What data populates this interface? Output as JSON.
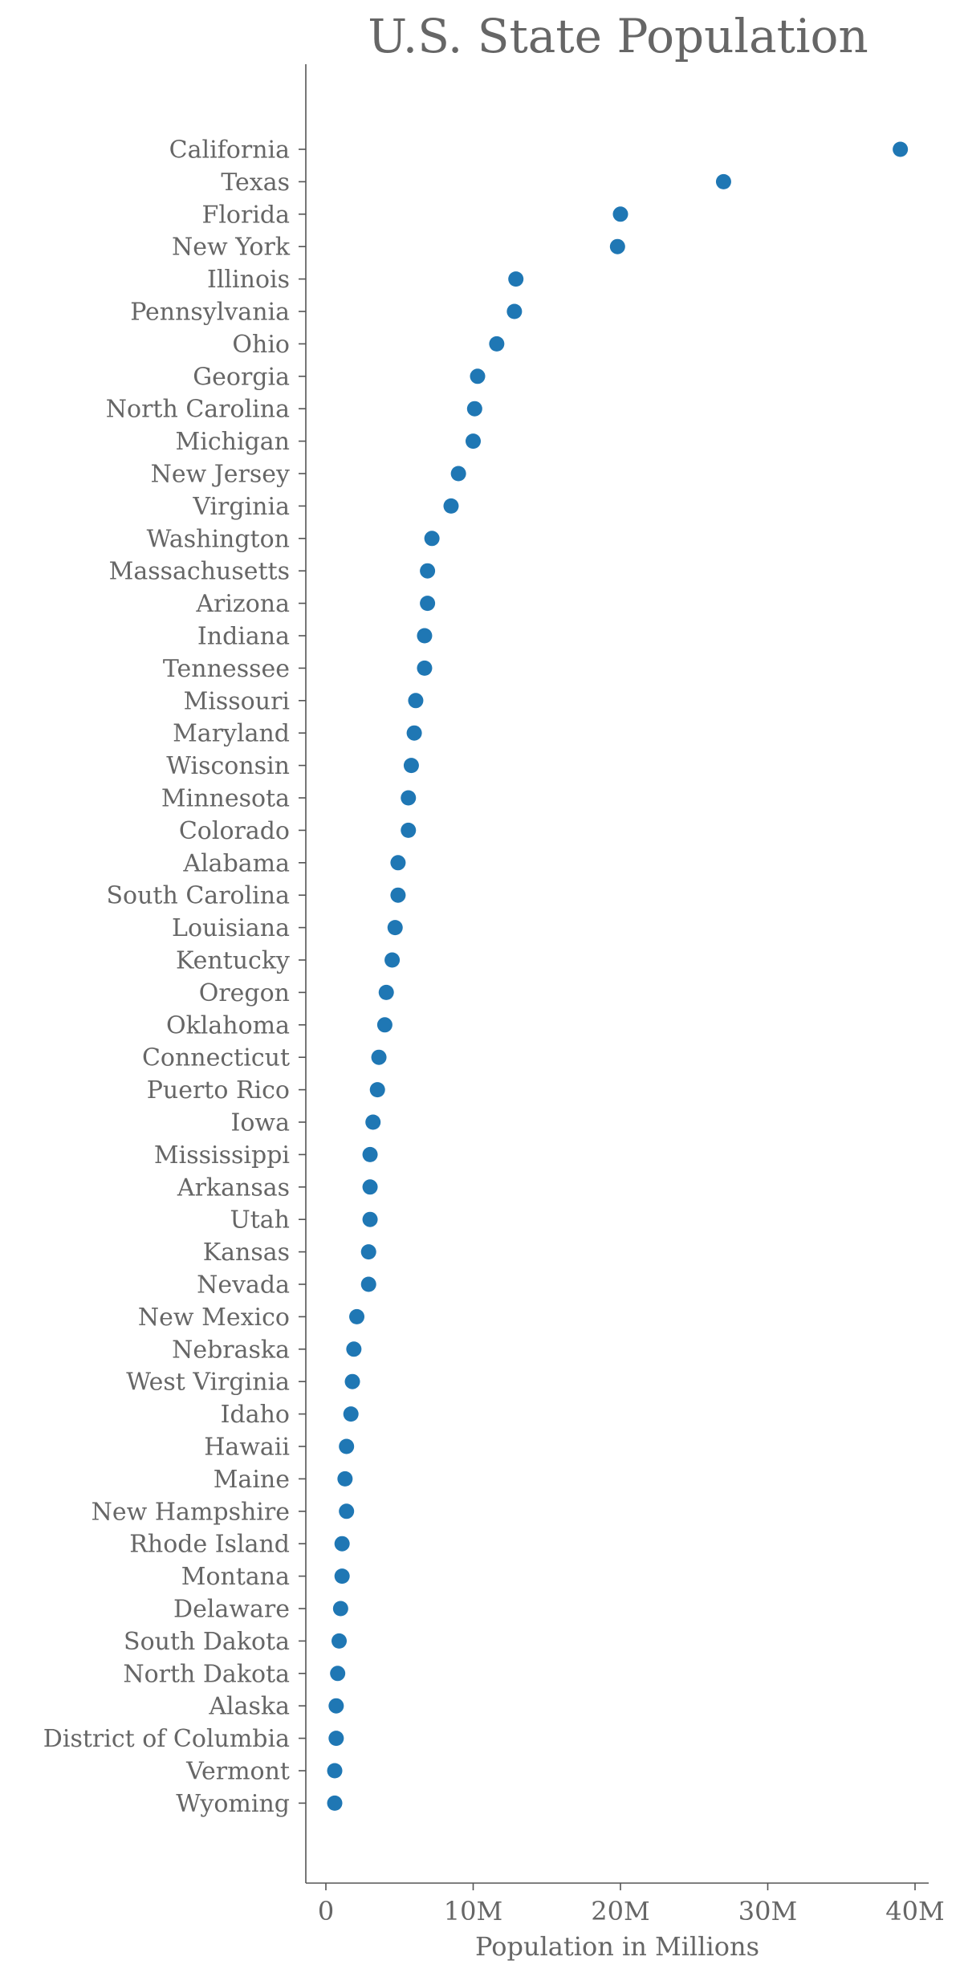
{
  "chart_data": {
    "type": "scatter",
    "title": "U.S. State Population",
    "xlabel": "Population in Millions",
    "ylabel": "",
    "xlim": [
      -1.4,
      40.5
    ],
    "xticks": [
      0,
      10,
      20,
      30,
      40
    ],
    "xtick_labels": [
      "0",
      "10M",
      "20M",
      "30M",
      "40M"
    ],
    "grid": false,
    "marker_color": "#1f77b4",
    "categories": [
      "California",
      "Texas",
      "Florida",
      "New York",
      "Illinois",
      "Pennsylvania",
      "Ohio",
      "Georgia",
      "North Carolina",
      "Michigan",
      "New Jersey",
      "Virginia",
      "Washington",
      "Massachusetts",
      "Arizona",
      "Indiana",
      "Tennessee",
      "Missouri",
      "Maryland",
      "Wisconsin",
      "Minnesota",
      "Colorado",
      "Alabama",
      "South Carolina",
      "Louisiana",
      "Kentucky",
      "Oregon",
      "Oklahoma",
      "Connecticut",
      "Puerto Rico",
      "Iowa",
      "Mississippi",
      "Arkansas",
      "Utah",
      "Kansas",
      "Nevada",
      "New Mexico",
      "Nebraska",
      "West Virginia",
      "Idaho",
      "Hawaii",
      "Maine",
      "New Hampshire",
      "Rhode Island",
      "Montana",
      "Delaware",
      "South Dakota",
      "North Dakota",
      "Alaska",
      "District of Columbia",
      "Vermont",
      "Wyoming"
    ],
    "values": [
      39.0,
      27.0,
      20.0,
      19.8,
      12.9,
      12.8,
      11.6,
      10.3,
      10.1,
      10.0,
      9.0,
      8.5,
      7.2,
      6.9,
      6.9,
      6.7,
      6.7,
      6.1,
      6.0,
      5.8,
      5.6,
      5.6,
      4.9,
      4.9,
      4.7,
      4.5,
      4.1,
      4.0,
      3.6,
      3.5,
      3.2,
      3.0,
      3.0,
      3.0,
      2.9,
      2.9,
      2.1,
      1.9,
      1.8,
      1.7,
      1.4,
      1.3,
      1.4,
      1.1,
      1.1,
      1.0,
      0.9,
      0.8,
      0.7,
      0.7,
      0.6,
      0.6
    ]
  }
}
